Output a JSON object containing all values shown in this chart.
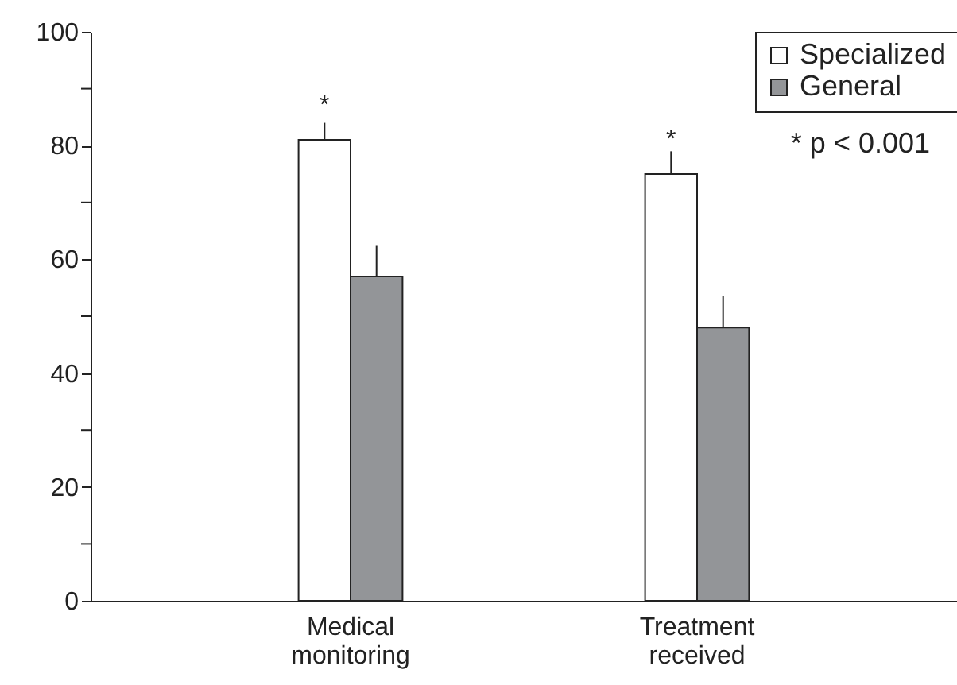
{
  "chart_data": {
    "type": "bar",
    "categories": [
      "Medical monitoring",
      "Treatment received"
    ],
    "series": [
      {
        "name": "Specialized",
        "color": "#ffffff",
        "values": [
          81,
          75
        ],
        "errors": [
          [
            81,
            84
          ],
          [
            75,
            79
          ]
        ]
      },
      {
        "name": "General",
        "color": "#939598",
        "values": [
          57,
          48
        ],
        "errors": [
          [
            57,
            62.5
          ],
          [
            48,
            53.5
          ]
        ]
      }
    ],
    "ylim": [
      0,
      100
    ],
    "yticks": [
      0,
      {
        "value": 10,
        "label": null
      },
      20,
      {
        "value": 30,
        "label": null
      },
      40,
      {
        "value": 50,
        "label": null
      },
      60,
      {
        "value": 70,
        "label": null
      },
      80,
      {
        "value": 90,
        "label": null
      },
      100
    ],
    "annotations": [
      {
        "text": "*",
        "x": "Medical monitoring",
        "y": 81
      },
      {
        "text": "*",
        "x": "Treatment received",
        "y": 75
      },
      "* p < 0.001"
    ],
    "legend": "top right",
    "grid": false
  }
}
